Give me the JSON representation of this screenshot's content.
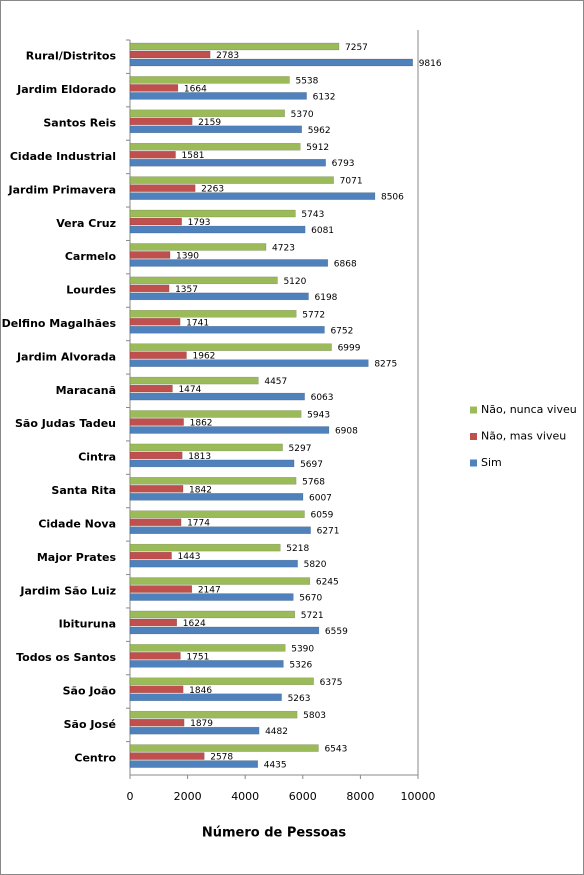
{
  "chart_data": {
    "type": "hbar",
    "x_label": "Número de Pessoas",
    "categories": [
      "Rural/Distritos",
      "Jardim Eldorado",
      "Santos Reis",
      "Cidade Industrial",
      "Jardim Primavera",
      "Vera Cruz",
      "Carmelo",
      "Lourdes",
      "Delfino Magalhães",
      "Jardim Alvorada",
      "Maracanã",
      "São Judas Tadeu",
      "Cintra",
      "Santa Rita",
      "Cidade Nova",
      "Major Prates",
      "Jardim São Luiz",
      "Ibituruna",
      "Todos os Santos",
      "São João",
      "São José",
      "Centro"
    ],
    "series": [
      {
        "name": "Não, nunca viveu",
        "color": "#9bbb59",
        "values": [
          7257,
          5538,
          5370,
          5912,
          7071,
          5743,
          4723,
          5120,
          5772,
          6999,
          4457,
          5943,
          5297,
          5768,
          6059,
          5218,
          6245,
          5721,
          5390,
          6375,
          5803,
          6543
        ]
      },
      {
        "name": "Não, mas viveu",
        "color": "#c0504d",
        "values": [
          2783,
          1664,
          2159,
          1581,
          2263,
          1793,
          1390,
          1357,
          1741,
          1962,
          1474,
          1862,
          1813,
          1842,
          1774,
          1443,
          2147,
          1624,
          1751,
          1846,
          1879,
          2578
        ]
      },
      {
        "name": "Sim",
        "color": "#4f81bd",
        "values": [
          9816,
          6132,
          5962,
          6793,
          8506,
          6081,
          6868,
          6198,
          6752,
          8275,
          6063,
          6908,
          5697,
          6007,
          6271,
          5820,
          5670,
          6559,
          5326,
          5263,
          4482,
          4435
        ]
      }
    ],
    "xlim": [
      0,
      10000
    ],
    "xticks": [
      0,
      2000,
      4000,
      6000,
      8000,
      10000
    ],
    "legend": "right"
  }
}
